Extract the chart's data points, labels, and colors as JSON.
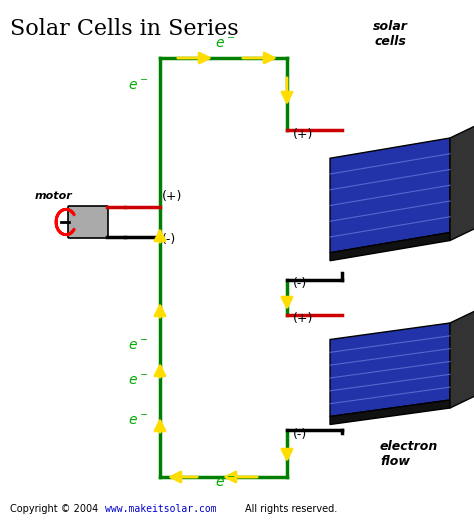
{
  "title": "Solar Cells in Series",
  "title_fontsize": 16,
  "background_color": "#ffffff",
  "circuit_color": "#008000",
  "wire_color_pos": "#cc0000",
  "wire_color_neg": "#000000",
  "arrow_color": "#ffdd00",
  "electron_color": "#00aa00",
  "copyright_text": "Copyright © 2004",
  "website_text": "www.makeitsolar.com",
  "rights_text": "All rights reserved.",
  "website_color": "#0000cc"
}
